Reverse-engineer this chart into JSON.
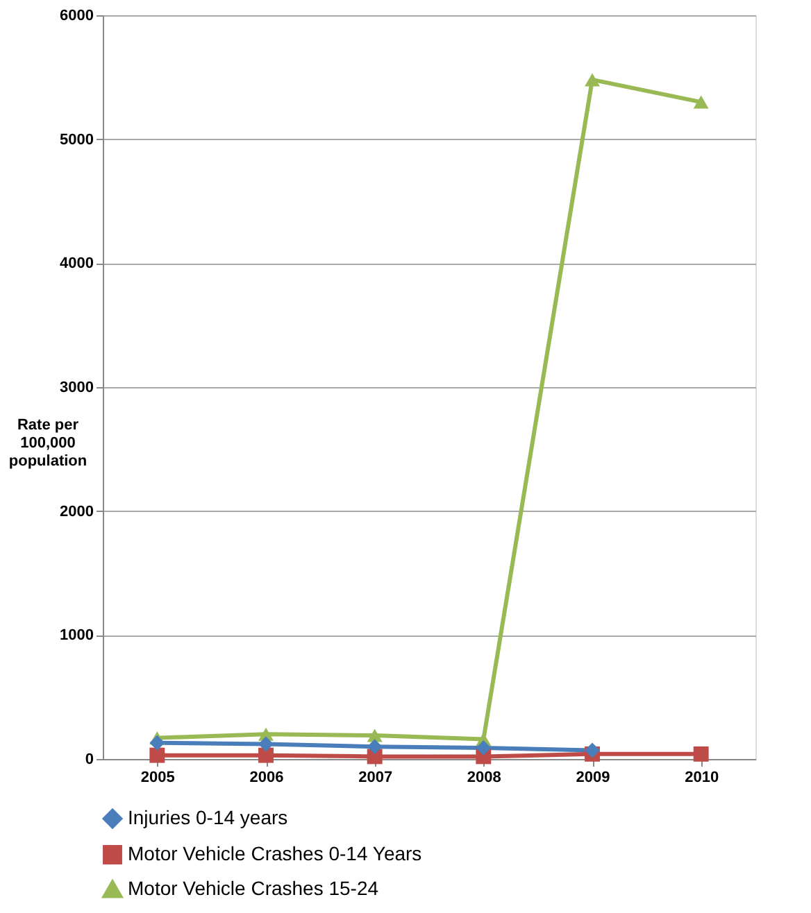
{
  "chart_data": {
    "type": "line",
    "ylabel": "Rate per\n100,000\npopulation",
    "categories": [
      "2005",
      "2006",
      "2007",
      "2008",
      "2009",
      "2010"
    ],
    "series": [
      {
        "name": "Injuries 0-14 years",
        "color": "#4a7ebb",
        "marker": "diamond",
        "values": [
          130,
          120,
          100,
          90,
          70,
          null
        ]
      },
      {
        "name": "Motor Vehicle Crashes 0-14 Years",
        "color": "#be4b48",
        "marker": "square",
        "values": [
          30,
          30,
          20,
          20,
          40,
          40
        ]
      },
      {
        "name": "Motor Vehicle Crashes 15-24",
        "color": "#98b954",
        "marker": "triangle",
        "values": [
          170,
          200,
          190,
          160,
          5480,
          5300
        ]
      }
    ],
    "ylim": [
      0,
      6000
    ],
    "yticks": [
      0,
      1000,
      2000,
      3000,
      4000,
      5000,
      6000
    ],
    "grid": "y",
    "legend": "bottom"
  }
}
